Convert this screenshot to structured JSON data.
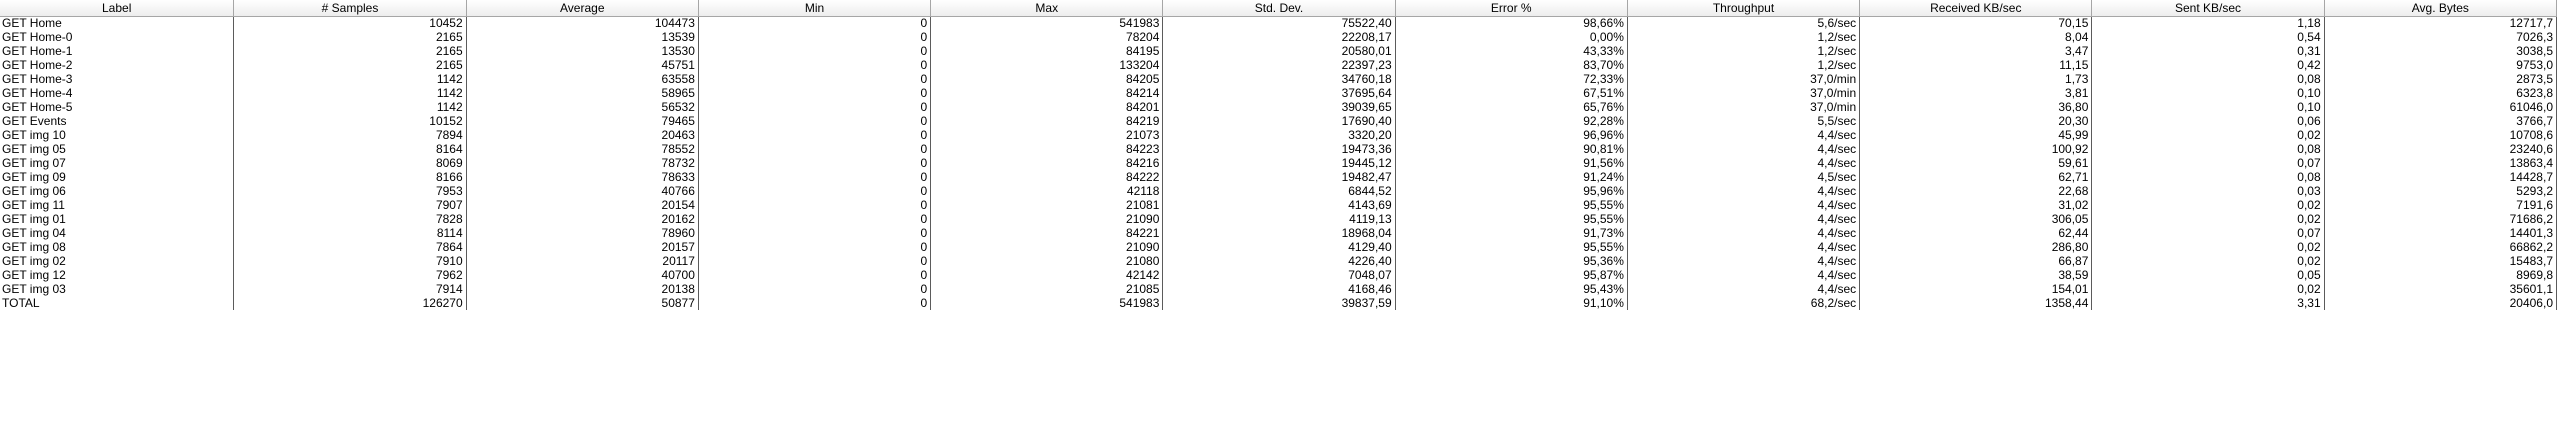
{
  "columns": [
    "Label",
    "# Samples",
    "Average",
    "Min",
    "Max",
    "Std. Dev.",
    "Error %",
    "Throughput",
    "Received KB/sec",
    "Sent KB/sec",
    "Avg. Bytes"
  ],
  "rows": [
    [
      "GET Home",
      "10452",
      "104473",
      "0",
      "541983",
      "75522,40",
      "98,66%",
      "5,6/sec",
      "70,15",
      "1,18",
      "12717,7"
    ],
    [
      "GET Home-0",
      "2165",
      "13539",
      "0",
      "78204",
      "22208,17",
      "0,00%",
      "1,2/sec",
      "8,04",
      "0,54",
      "7026,3"
    ],
    [
      "GET Home-1",
      "2165",
      "13530",
      "0",
      "84195",
      "20580,01",
      "43,33%",
      "1,2/sec",
      "3,47",
      "0,31",
      "3038,5"
    ],
    [
      "GET Home-2",
      "2165",
      "45751",
      "0",
      "133204",
      "22397,23",
      "83,70%",
      "1,2/sec",
      "11,15",
      "0,42",
      "9753,0"
    ],
    [
      "GET Home-3",
      "1142",
      "63558",
      "0",
      "84205",
      "34760,18",
      "72,33%",
      "37,0/min",
      "1,73",
      "0,08",
      "2873,5"
    ],
    [
      "GET Home-4",
      "1142",
      "58965",
      "0",
      "84214",
      "37695,64",
      "67,51%",
      "37,0/min",
      "3,81",
      "0,10",
      "6323,8"
    ],
    [
      "GET Home-5",
      "1142",
      "56532",
      "0",
      "84201",
      "39039,65",
      "65,76%",
      "37,0/min",
      "36,80",
      "0,10",
      "61046,0"
    ],
    [
      "GET Events",
      "10152",
      "79465",
      "0",
      "84219",
      "17690,40",
      "92,28%",
      "5,5/sec",
      "20,30",
      "0,06",
      "3766,7"
    ],
    [
      "GET img 10",
      "7894",
      "20463",
      "0",
      "21073",
      "3320,20",
      "96,96%",
      "4,4/sec",
      "45,99",
      "0,02",
      "10708,6"
    ],
    [
      "GET img 05",
      "8164",
      "78552",
      "0",
      "84223",
      "19473,36",
      "90,81%",
      "4,4/sec",
      "100,92",
      "0,08",
      "23240,6"
    ],
    [
      "GET img 07",
      "8069",
      "78732",
      "0",
      "84216",
      "19445,12",
      "91,56%",
      "4,4/sec",
      "59,61",
      "0,07",
      "13863,4"
    ],
    [
      "GET img 09",
      "8166",
      "78633",
      "0",
      "84222",
      "19482,47",
      "91,24%",
      "4,5/sec",
      "62,71",
      "0,08",
      "14428,7"
    ],
    [
      "GET img 06",
      "7953",
      "40766",
      "0",
      "42118",
      "6844,52",
      "95,96%",
      "4,4/sec",
      "22,68",
      "0,03",
      "5293,2"
    ],
    [
      "GET img 11",
      "7907",
      "20154",
      "0",
      "21081",
      "4143,69",
      "95,55%",
      "4,4/sec",
      "31,02",
      "0,02",
      "7191,6"
    ],
    [
      "GET img 01",
      "7828",
      "20162",
      "0",
      "21090",
      "4119,13",
      "95,55%",
      "4,4/sec",
      "306,05",
      "0,02",
      "71686,2"
    ],
    [
      "GET img 04",
      "8114",
      "78960",
      "0",
      "84221",
      "18968,04",
      "91,73%",
      "4,4/sec",
      "62,44",
      "0,07",
      "14401,3"
    ],
    [
      "GET img 08",
      "7864",
      "20157",
      "0",
      "21090",
      "4129,40",
      "95,55%",
      "4,4/sec",
      "286,80",
      "0,02",
      "66862,2"
    ],
    [
      "GET img 02",
      "7910",
      "20117",
      "0",
      "21080",
      "4226,40",
      "95,36%",
      "4,4/sec",
      "66,87",
      "0,02",
      "15483,7"
    ],
    [
      "GET img 12",
      "7962",
      "40700",
      "0",
      "42142",
      "7048,07",
      "95,87%",
      "4,4/sec",
      "38,59",
      "0,05",
      "8969,8"
    ],
    [
      "GET img 03",
      "7914",
      "20138",
      "0",
      "21085",
      "4168,46",
      "95,43%",
      "4,4/sec",
      "154,01",
      "0,02",
      "35601,1"
    ],
    [
      "TOTAL",
      "126270",
      "50877",
      "0",
      "541983",
      "39837,59",
      "91,10%",
      "68,2/sec",
      "1358,44",
      "3,31",
      "20406,0"
    ]
  ]
}
